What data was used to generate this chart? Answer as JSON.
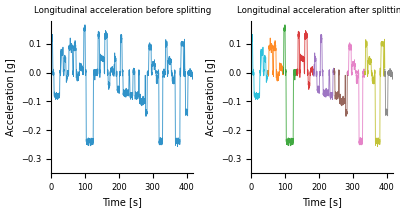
{
  "title_left": "Longitudinal acceleration before splitting",
  "title_right": "Longitudinal acceleration after splitting",
  "xlabel": "Time [s]",
  "ylabel": "Acceleration [g]",
  "xlim": [
    0,
    420
  ],
  "ylim": [
    -0.35,
    0.18
  ],
  "yticks": [
    -0.3,
    -0.2,
    -0.1,
    0.0,
    0.1
  ],
  "xticks": [
    0,
    100,
    200,
    300,
    400
  ],
  "line_color_left": "#1a87c4",
  "segment_colors": [
    "#17b9d8",
    "#ff7f0e",
    "#2ca02c",
    "#d62728",
    "#9467bd",
    "#8c564b",
    "#e377c2",
    "#bcbd22",
    "#7f7f7f"
  ],
  "segment_boundaries_time": [
    0,
    50,
    95,
    135,
    185,
    245,
    285,
    335,
    395,
    420
  ],
  "n_points": 4200,
  "t_max": 420,
  "figsize": [
    4.0,
    2.13
  ],
  "dpi": 100
}
